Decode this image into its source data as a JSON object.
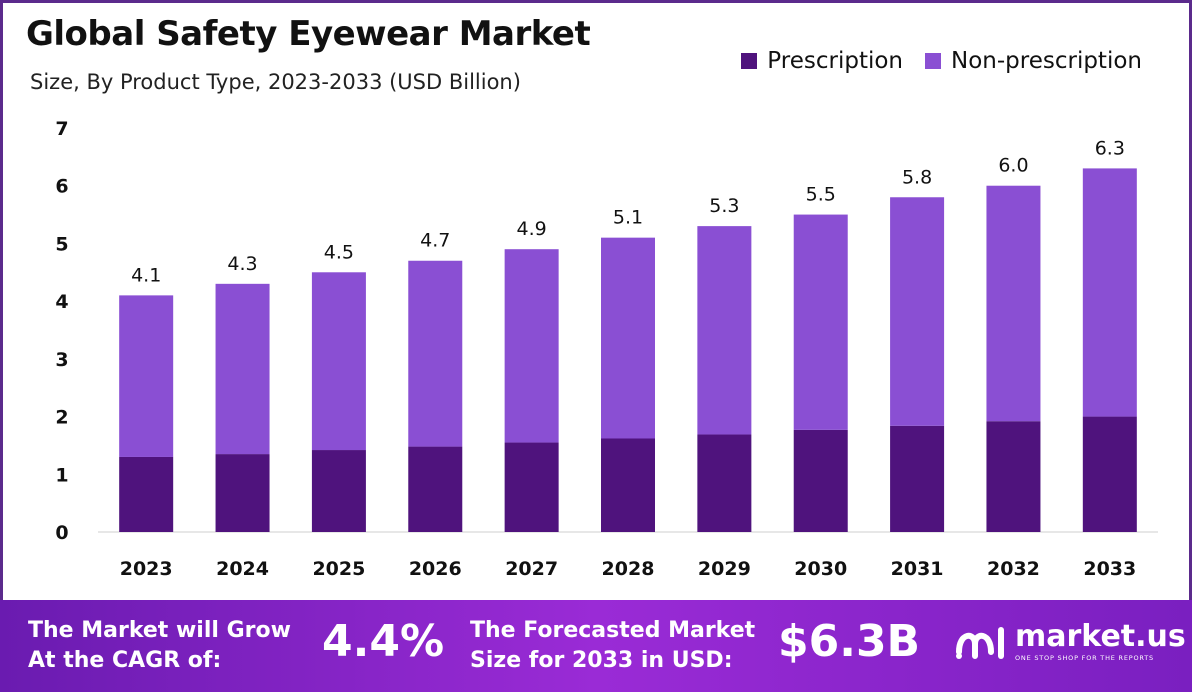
{
  "chart_data": {
    "type": "bar",
    "stacked": true,
    "title": "Global Safety Eyewear Market",
    "subtitle": "Size, By Product Type, 2023-2033 (USD Billion)",
    "categories": [
      "2023",
      "2024",
      "2025",
      "2026",
      "2027",
      "2028",
      "2029",
      "2030",
      "2031",
      "2032",
      "2033"
    ],
    "series": [
      {
        "name": "Prescription",
        "color": "#4f137d",
        "values": [
          1.3,
          1.35,
          1.42,
          1.48,
          1.55,
          1.62,
          1.69,
          1.77,
          1.84,
          1.92,
          2.0
        ]
      },
      {
        "name": "Non-prescription",
        "color": "#8a4fd3",
        "values": [
          2.8,
          2.95,
          3.08,
          3.22,
          3.35,
          3.48,
          3.61,
          3.73,
          3.96,
          4.08,
          4.3
        ]
      }
    ],
    "totals": [
      "4.1",
      "4.3",
      "4.5",
      "4.7",
      "4.9",
      "5.1",
      "5.3",
      "5.5",
      "5.8",
      "6.0",
      "6.3"
    ],
    "ylim": [
      0,
      7
    ],
    "yticks": [
      "0",
      "1",
      "2",
      "3",
      "4",
      "5",
      "6",
      "7"
    ],
    "grid": false,
    "legend_position": "top-right"
  },
  "footer": {
    "cagr_label_line1": "The Market will Grow",
    "cagr_label_line2": "At the CAGR of:",
    "cagr_value": "4.4%",
    "forecast_label_line1": "The Forecasted Market",
    "forecast_label_line2": "Size for 2033 in USD:",
    "forecast_value": "$6.3B",
    "brand_name": "market.us",
    "brand_tagline": "ONE STOP SHOP FOR THE REPORTS"
  },
  "colors": {
    "footer_start": "#6a1bb0",
    "footer_end": "#9a2bd6"
  }
}
